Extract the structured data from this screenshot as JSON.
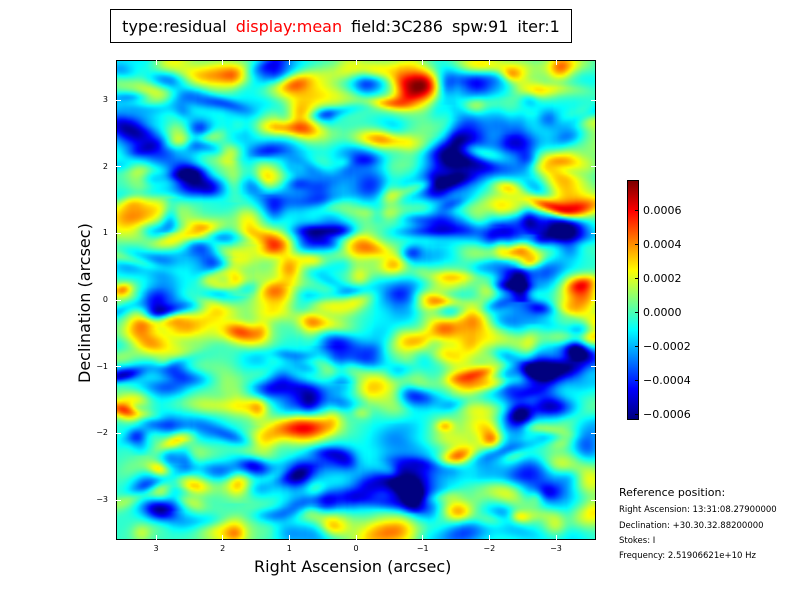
{
  "title": {
    "type": "type:residual",
    "display": "display:mean",
    "field": "field:3C286",
    "spw": "spw:91",
    "iter": "iter:1"
  },
  "colors": {
    "display": "#ff0000"
  },
  "chart_data": {
    "type": "heatmap",
    "colormap": "jet",
    "xlabel": "Right Ascension (arcsec)",
    "ylabel": "Declination (arcsec)",
    "xlim": [
      3.6,
      -3.6
    ],
    "ylim": [
      -3.6,
      3.6
    ],
    "xticks": [
      3,
      2,
      1,
      0,
      -1,
      -2,
      -3
    ],
    "xtick_labels": [
      "3",
      "2",
      "1",
      "0",
      "−1",
      "−2",
      "−3"
    ],
    "yticks": [
      3,
      2,
      1,
      0,
      -1,
      -2,
      -3
    ],
    "ytick_labels": [
      "3",
      "2",
      "1",
      "0",
      "−1",
      "−2",
      "−3"
    ],
    "colorbar": {
      "range": [
        -0.00063,
        0.00078
      ],
      "ticks": [
        0.0006,
        0.0004,
        0.0002,
        0.0,
        -0.0002,
        -0.0004,
        -0.0006
      ],
      "tick_labels": [
        "0.0006",
        "0.0004",
        "0.0002",
        "0.0000",
        "−0.0002",
        "−0.0004",
        "−0.0006"
      ]
    }
  },
  "reference": {
    "heading": "Reference position:",
    "ra": "Right Ascension: 13:31:08.27900000",
    "dec": "Declination: +30.30.32.88200000",
    "stokes": "Stokes: I",
    "freq": "Frequency: 2.51906621e+10 Hz"
  }
}
